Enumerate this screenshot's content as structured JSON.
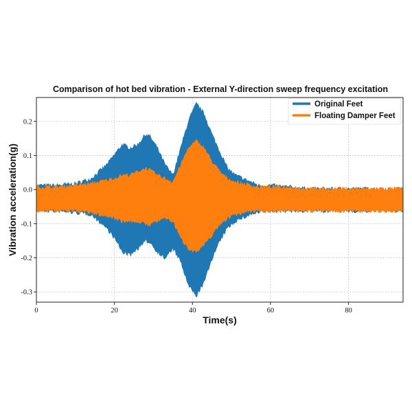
{
  "chart_data": {
    "type": "area",
    "title": "Comparison of hot bed vibration - External Y-direction sweep frequency excitation",
    "xlabel": "Time(s)",
    "ylabel": "Vibration acceleration(g)",
    "xlim": [
      0,
      94
    ],
    "ylim": [
      -0.33,
      0.27
    ],
    "grid": true,
    "legend_position": "top-right",
    "x_ticks": [
      0,
      20,
      40,
      60,
      80
    ],
    "x_tick_labels": [
      "0",
      "20",
      "40",
      "60",
      "80"
    ],
    "y_ticks": [
      0.2,
      0.1,
      0.0,
      -0.1,
      -0.2,
      -0.3
    ],
    "y_tick_labels": [
      "0.2",
      "0.1",
      "0.0",
      "-0.1",
      "-0.2",
      "-0.3"
    ],
    "series": [
      {
        "name": "Original Feet",
        "color": "#1f77b4",
        "x": [
          0,
          5,
          10,
          14,
          16,
          18,
          20,
          22,
          24,
          26,
          28,
          29,
          31,
          33,
          35,
          37,
          39,
          41,
          43,
          45,
          47,
          49,
          51,
          53,
          55,
          57,
          60,
          65,
          70,
          75,
          80,
          85,
          90,
          94
        ],
        "upper": [
          0.01,
          0.01,
          0.015,
          0.03,
          0.05,
          0.07,
          0.1,
          0.13,
          0.12,
          0.13,
          0.16,
          0.155,
          0.12,
          0.07,
          0.04,
          0.12,
          0.2,
          0.25,
          0.22,
          0.16,
          0.11,
          0.06,
          0.04,
          0.03,
          0.02,
          0.01,
          0.01,
          0.005,
          0.0,
          0.0,
          0.0,
          0.0,
          0.0,
          0.0
        ],
        "lower": [
          -0.06,
          -0.06,
          -0.065,
          -0.07,
          -0.09,
          -0.11,
          -0.14,
          -0.18,
          -0.19,
          -0.17,
          -0.15,
          -0.15,
          -0.18,
          -0.2,
          -0.17,
          -0.21,
          -0.28,
          -0.31,
          -0.27,
          -0.2,
          -0.15,
          -0.11,
          -0.09,
          -0.08,
          -0.07,
          -0.065,
          -0.06,
          -0.06,
          -0.06,
          -0.06,
          -0.06,
          -0.06,
          -0.06,
          -0.06
        ]
      },
      {
        "name": "Floating Damper Feet",
        "color": "#ff7f0e",
        "x": [
          0,
          5,
          10,
          14,
          16,
          18,
          20,
          22,
          24,
          26,
          28,
          29,
          31,
          33,
          35,
          37,
          39,
          41,
          43,
          45,
          47,
          49,
          51,
          53,
          55,
          57,
          60,
          65,
          70,
          75,
          80,
          85,
          90,
          94
        ],
        "upper": [
          0.005,
          0.005,
          0.01,
          0.015,
          0.02,
          0.025,
          0.03,
          0.04,
          0.04,
          0.05,
          0.06,
          0.055,
          0.04,
          0.03,
          0.02,
          0.07,
          0.12,
          0.14,
          0.12,
          0.08,
          0.05,
          0.03,
          0.02,
          0.015,
          0.01,
          0.005,
          0.005,
          0.005,
          0.0,
          0.0,
          0.0,
          0.0,
          0.0,
          0.0
        ],
        "lower": [
          -0.06,
          -0.06,
          -0.06,
          -0.065,
          -0.07,
          -0.075,
          -0.08,
          -0.09,
          -0.09,
          -0.09,
          -0.1,
          -0.1,
          -0.09,
          -0.08,
          -0.09,
          -0.14,
          -0.17,
          -0.18,
          -0.16,
          -0.13,
          -0.1,
          -0.08,
          -0.07,
          -0.065,
          -0.06,
          -0.06,
          -0.06,
          -0.06,
          -0.06,
          -0.06,
          -0.06,
          -0.06,
          -0.06,
          -0.06
        ]
      }
    ]
  }
}
